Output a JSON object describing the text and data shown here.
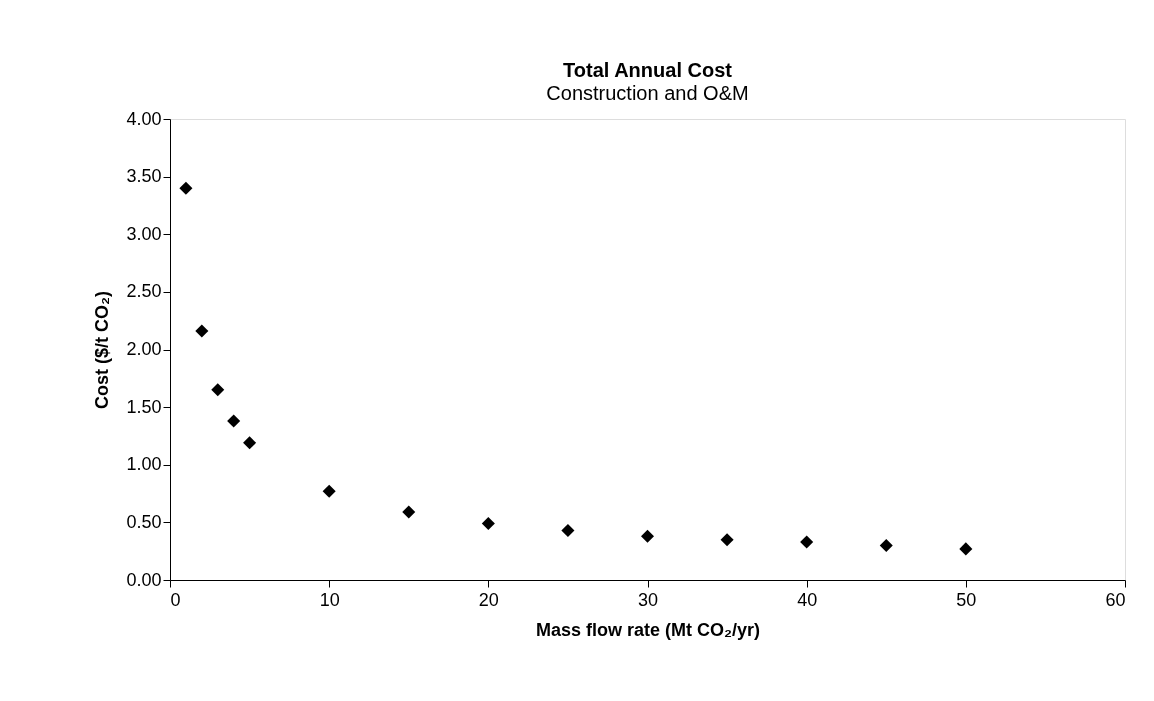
{
  "chart_data": {
    "type": "scatter",
    "title": "Total Annual Cost",
    "subtitle": "Construction and O&M",
    "xlabel": "Mass flow rate (Mt CO₂/yr)",
    "ylabel": "Cost ($/t CO₂)",
    "x": [
      1,
      2,
      3,
      4,
      5,
      10,
      15,
      20,
      25,
      30,
      35,
      40,
      45,
      50
    ],
    "series": [
      {
        "color": "#000000",
        "values": [
          3.4,
          2.16,
          1.65,
          1.38,
          1.19,
          0.77,
          0.59,
          0.49,
          0.43,
          0.38,
          0.35,
          0.33,
          0.3,
          0.27
        ]
      }
    ],
    "xlim": [
      0,
      60
    ],
    "xticks": [
      0,
      10,
      20,
      30,
      40,
      50,
      60
    ],
    "ylim": [
      0,
      4
    ],
    "yticks": [
      {
        "value": 0,
        "label": "0.00"
      },
      {
        "value": 0.5,
        "label": "0.50"
      },
      {
        "value": 1,
        "label": "1.00"
      },
      {
        "value": 1.5,
        "label": "1.50"
      },
      {
        "value": 2,
        "label": "2.00"
      },
      {
        "value": 2.5,
        "label": "2.50"
      },
      {
        "value": 3,
        "label": "3.00"
      },
      {
        "value": 3.5,
        "label": "3.50"
      },
      {
        "value": 4,
        "label": "4.00"
      }
    ],
    "grid": false,
    "marker": "diamond"
  }
}
